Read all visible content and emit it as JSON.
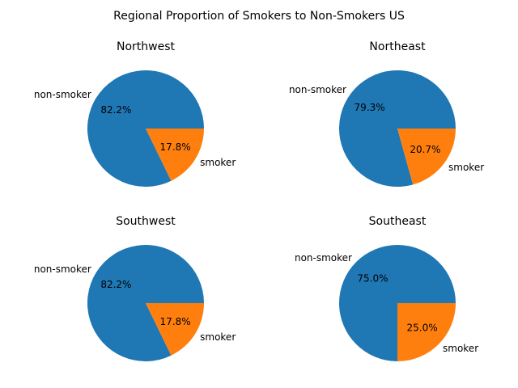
{
  "figure": {
    "title": "Regional Proportion of Smokers to Non-Smokers US"
  },
  "colors": {
    "non-smoker": "#1f77b4",
    "smoker": "#ff7f0e"
  },
  "chart_data": [
    {
      "type": "pie",
      "title": "Northwest",
      "categories": [
        "non-smoker",
        "smoker"
      ],
      "values": [
        82.2,
        17.8
      ],
      "value_labels": [
        "82.2%",
        "17.8%"
      ]
    },
    {
      "type": "pie",
      "title": "Northeast",
      "categories": [
        "non-smoker",
        "smoker"
      ],
      "values": [
        79.3,
        20.7
      ],
      "value_labels": [
        "79.3%",
        "20.7%"
      ]
    },
    {
      "type": "pie",
      "title": "Southwest",
      "categories": [
        "non-smoker",
        "smoker"
      ],
      "values": [
        82.2,
        17.8
      ],
      "value_labels": [
        "82.2%",
        "17.8%"
      ]
    },
    {
      "type": "pie",
      "title": "Southeast",
      "categories": [
        "non-smoker",
        "smoker"
      ],
      "values": [
        75.0,
        25.0
      ],
      "value_labels": [
        "75.0%",
        "25.0%"
      ]
    }
  ]
}
